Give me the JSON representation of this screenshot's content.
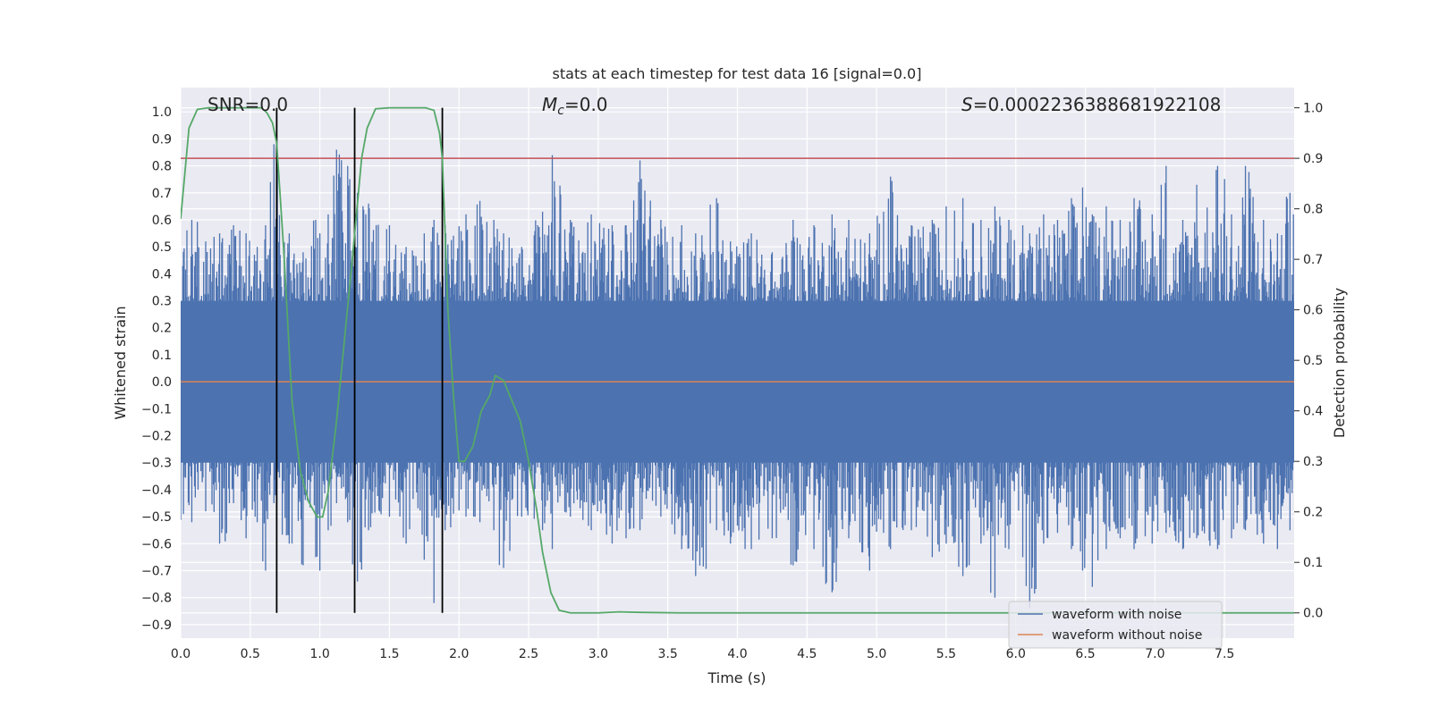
{
  "chart_data": {
    "type": "line",
    "title": "stats at each timestep for test data 16 [signal=0.0]",
    "xlabel": "Time (s)",
    "ylabel_left": "Whitened strain",
    "ylabel_right": "Detection probability",
    "xlim": [
      0.0,
      8.0
    ],
    "ylim_left": [
      -0.95,
      1.09
    ],
    "ylim_right": [
      -0.05,
      1.04
    ],
    "grid": true,
    "legend_position": "bottom-right",
    "x_ticks": [
      "0.0",
      "0.5",
      "1.0",
      "1.5",
      "2.0",
      "2.5",
      "3.0",
      "3.5",
      "4.0",
      "4.5",
      "5.0",
      "5.5",
      "6.0",
      "6.5",
      "7.0",
      "7.5"
    ],
    "y_ticks_left": [
      "1.0",
      "0.9",
      "0.8",
      "0.7",
      "0.6",
      "0.5",
      "0.4",
      "0.3",
      "0.2",
      "0.1",
      "0.0",
      "-0.1",
      "-0.2",
      "-0.3",
      "-0.4",
      "-0.5",
      "-0.6",
      "-0.7",
      "-0.8",
      "-0.9"
    ],
    "y_ticks_right": [
      "1.0",
      "0.9",
      "0.8",
      "0.7",
      "0.6",
      "0.5",
      "0.4",
      "0.3",
      "0.2",
      "0.1",
      "0.0"
    ],
    "annotations": {
      "snr": "SNR=0.0",
      "mc_symbol": "M",
      "mc_sub": "c",
      "mc_value": "=0.0",
      "s_symbol": "S",
      "s_value": "=0.0002236388681922108"
    },
    "threshold_line": {
      "axis": "right",
      "value": 0.9,
      "color": "#c44e52"
    },
    "vertical_lines": {
      "x": [
        0.69,
        1.25,
        1.88
      ],
      "y_range_right": [
        0.0,
        1.0
      ],
      "color": "#000000"
    },
    "series": [
      {
        "name": "waveform with noise",
        "axis": "left",
        "color": "#4c72b0",
        "envelope_spikes": [
          {
            "x": 0.08,
            "hi": 0.6,
            "lo": -0.52
          },
          {
            "x": 0.18,
            "hi": 0.52,
            "lo": -0.48
          },
          {
            "x": 0.28,
            "hi": 0.55,
            "lo": -0.6
          },
          {
            "x": 0.38,
            "hi": 0.58,
            "lo": -0.45
          },
          {
            "x": 0.47,
            "hi": 0.55,
            "lo": -0.58
          },
          {
            "x": 0.55,
            "hi": 0.5,
            "lo": -0.52
          },
          {
            "x": 0.61,
            "hi": 0.58,
            "lo": -0.7
          },
          {
            "x": 0.67,
            "hi": 0.88,
            "lo": -0.45
          },
          {
            "x": 0.78,
            "hi": 0.55,
            "lo": -0.6
          },
          {
            "x": 0.88,
            "hi": 0.48,
            "lo": -0.68
          },
          {
            "x": 0.97,
            "hi": 0.6,
            "lo": -0.65
          },
          {
            "x": 1.0,
            "hi": 0.55,
            "lo": -0.7
          },
          {
            "x": 1.06,
            "hi": 0.62,
            "lo": -0.55
          },
          {
            "x": 1.12,
            "hi": 0.86,
            "lo": -0.45
          },
          {
            "x": 1.2,
            "hi": 0.8,
            "lo": -0.52
          },
          {
            "x": 1.27,
            "hi": 0.7,
            "lo": -0.74
          },
          {
            "x": 1.35,
            "hi": 0.66,
            "lo": -0.55
          },
          {
            "x": 1.5,
            "hi": 0.58,
            "lo": -0.5
          },
          {
            "x": 1.62,
            "hi": 0.5,
            "lo": -0.6
          },
          {
            "x": 1.75,
            "hi": 0.55,
            "lo": -0.66
          },
          {
            "x": 1.82,
            "hi": 0.6,
            "lo": -0.82
          },
          {
            "x": 1.9,
            "hi": 0.58,
            "lo": -0.55
          },
          {
            "x": 2.05,
            "hi": 0.62,
            "lo": -0.5
          },
          {
            "x": 2.15,
            "hi": 0.67,
            "lo": -0.52
          },
          {
            "x": 2.25,
            "hi": 0.6,
            "lo": -0.55
          },
          {
            "x": 2.32,
            "hi": 0.55,
            "lo": -0.69
          },
          {
            "x": 2.45,
            "hi": 0.5,
            "lo": -0.5
          },
          {
            "x": 2.6,
            "hi": 0.63,
            "lo": -0.55
          },
          {
            "x": 2.67,
            "hi": 0.84,
            "lo": -0.62
          },
          {
            "x": 2.8,
            "hi": 0.6,
            "lo": -0.5
          },
          {
            "x": 2.95,
            "hi": 0.62,
            "lo": -0.55
          },
          {
            "x": 3.1,
            "hi": 0.58,
            "lo": -0.6
          },
          {
            "x": 3.2,
            "hi": 0.58,
            "lo": -0.58
          },
          {
            "x": 3.3,
            "hi": 0.82,
            "lo": -0.55
          },
          {
            "x": 3.45,
            "hi": 0.6,
            "lo": -0.5
          },
          {
            "x": 3.6,
            "hi": 0.58,
            "lo": -0.62
          },
          {
            "x": 3.7,
            "hi": 0.55,
            "lo": -0.72
          },
          {
            "x": 3.85,
            "hi": 0.68,
            "lo": -0.55
          },
          {
            "x": 3.95,
            "hi": 0.52,
            "lo": -0.6
          },
          {
            "x": 4.1,
            "hi": 0.55,
            "lo": -0.62
          },
          {
            "x": 4.25,
            "hi": 0.48,
            "lo": -0.58
          },
          {
            "x": 4.4,
            "hi": 0.6,
            "lo": -0.68
          },
          {
            "x": 4.55,
            "hi": 0.58,
            "lo": -0.62
          },
          {
            "x": 4.68,
            "hi": 0.62,
            "lo": -0.78
          },
          {
            "x": 4.8,
            "hi": 0.6,
            "lo": -0.58
          },
          {
            "x": 4.95,
            "hi": 0.55,
            "lo": -0.7
          },
          {
            "x": 5.05,
            "hi": 0.63,
            "lo": -0.56
          },
          {
            "x": 5.1,
            "hi": 0.76,
            "lo": -0.62
          },
          {
            "x": 5.25,
            "hi": 0.58,
            "lo": -0.55
          },
          {
            "x": 5.4,
            "hi": 0.6,
            "lo": -0.65
          },
          {
            "x": 5.5,
            "hi": 0.65,
            "lo": -0.6
          },
          {
            "x": 5.62,
            "hi": 0.68,
            "lo": -0.72
          },
          {
            "x": 5.75,
            "hi": 0.6,
            "lo": -0.6
          },
          {
            "x": 5.85,
            "hi": 0.65,
            "lo": -0.8
          },
          {
            "x": 5.95,
            "hi": 0.6,
            "lo": -0.62
          },
          {
            "x": 6.05,
            "hi": 0.58,
            "lo": -0.65
          },
          {
            "x": 6.1,
            "hi": 0.55,
            "lo": -0.84
          },
          {
            "x": 6.2,
            "hi": 0.62,
            "lo": -0.6
          },
          {
            "x": 6.3,
            "hi": 0.6,
            "lo": -0.56
          },
          {
            "x": 6.4,
            "hi": 0.68,
            "lo": -0.62
          },
          {
            "x": 6.48,
            "hi": 0.72,
            "lo": -0.7
          },
          {
            "x": 6.55,
            "hi": 0.62,
            "lo": -0.76
          },
          {
            "x": 6.65,
            "hi": 0.65,
            "lo": -0.62
          },
          {
            "x": 6.75,
            "hi": 0.6,
            "lo": -0.58
          },
          {
            "x": 6.85,
            "hi": 0.68,
            "lo": -0.62
          },
          {
            "x": 6.98,
            "hi": 0.62,
            "lo": -0.6
          },
          {
            "x": 7.08,
            "hi": 0.8,
            "lo": -0.56
          },
          {
            "x": 7.2,
            "hi": 0.6,
            "lo": -0.62
          },
          {
            "x": 7.3,
            "hi": 0.73,
            "lo": -0.58
          },
          {
            "x": 7.45,
            "hi": 0.8,
            "lo": -0.62
          },
          {
            "x": 7.55,
            "hi": 0.62,
            "lo": -0.58
          },
          {
            "x": 7.65,
            "hi": 0.8,
            "lo": -0.55
          },
          {
            "x": 7.78,
            "hi": 0.6,
            "lo": -0.6
          },
          {
            "x": 7.88,
            "hi": 0.55,
            "lo": -0.62
          },
          {
            "x": 7.97,
            "hi": 0.7,
            "lo": -0.55
          }
        ]
      },
      {
        "name": "waveform without noise",
        "axis": "left",
        "color": "#dd8452",
        "x": [
          0.0,
          8.0
        ],
        "y": [
          0.0,
          0.0
        ]
      },
      {
        "name": "",
        "axis": "right",
        "color": "#55a868",
        "x": [
          0.0,
          0.06,
          0.12,
          0.2,
          0.3,
          0.4,
          0.5,
          0.58,
          0.62,
          0.66,
          0.69,
          0.74,
          0.8,
          0.86,
          0.92,
          0.98,
          1.02,
          1.06,
          1.12,
          1.18,
          1.24,
          1.3,
          1.34,
          1.4,
          1.5,
          1.6,
          1.7,
          1.76,
          1.82,
          1.86,
          1.88,
          1.92,
          1.96,
          2.0,
          2.04,
          2.1,
          2.16,
          2.22,
          2.26,
          2.32,
          2.38,
          2.44,
          2.5,
          2.56,
          2.6,
          2.66,
          2.72,
          2.8,
          3.0,
          3.15,
          3.3,
          3.6,
          4.0,
          5.0,
          6.0,
          7.0,
          8.0
        ],
        "y": [
          0.78,
          0.96,
          0.997,
          1.0,
          1.0,
          1.0,
          1.0,
          1.0,
          0.99,
          0.97,
          0.93,
          0.72,
          0.42,
          0.28,
          0.22,
          0.19,
          0.19,
          0.24,
          0.38,
          0.55,
          0.72,
          0.9,
          0.96,
          0.998,
          1.0,
          1.0,
          1.0,
          1.0,
          0.995,
          0.95,
          0.9,
          0.6,
          0.43,
          0.3,
          0.3,
          0.33,
          0.4,
          0.43,
          0.47,
          0.46,
          0.42,
          0.38,
          0.3,
          0.2,
          0.12,
          0.04,
          0.005,
          0.0,
          0.0,
          0.002,
          0.001,
          0.0,
          0.0,
          0.0,
          0.0,
          0.0,
          0.0
        ]
      }
    ]
  }
}
